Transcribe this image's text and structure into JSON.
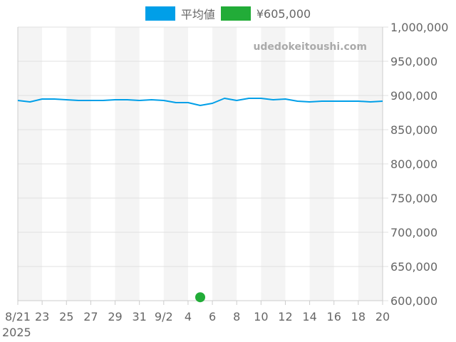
{
  "legend": {
    "items": [
      {
        "label": "平均値",
        "color": "#009fe8"
      },
      {
        "label": "¥605,000",
        "color": "#22ac38"
      }
    ]
  },
  "watermark": "udedokeitoushi.com",
  "chart_data": {
    "type": "line",
    "title": "",
    "xlabel": "",
    "ylabel": "",
    "year_label": "2025",
    "x_tick_labels": [
      "8/21",
      "23",
      "25",
      "27",
      "29",
      "31",
      "9/2",
      "4",
      "6",
      "8",
      "10",
      "12",
      "14",
      "16",
      "18",
      "20"
    ],
    "y_tick_labels": [
      "1,000,000",
      "950,000",
      "900,000",
      "850,000",
      "800,000",
      "750,000",
      "700,000",
      "650,000",
      "600,000"
    ],
    "ylim": [
      600000,
      1000000
    ],
    "x": [
      "8/21",
      "8/22",
      "8/23",
      "8/24",
      "8/25",
      "8/26",
      "8/27",
      "8/28",
      "8/29",
      "8/30",
      "8/31",
      "9/1",
      "9/2",
      "9/3",
      "9/4",
      "9/5",
      "9/6",
      "9/7",
      "9/8",
      "9/9",
      "9/10",
      "9/11",
      "9/12",
      "9/13",
      "9/14",
      "9/15",
      "9/16",
      "9/17",
      "9/18",
      "9/19",
      "9/20"
    ],
    "series": [
      {
        "name": "平均値",
        "color": "#009fe8",
        "values": [
          892700,
          890600,
          894800,
          894800,
          893800,
          892700,
          892700,
          892700,
          893800,
          893800,
          892700,
          893800,
          892700,
          889600,
          889600,
          885400,
          888500,
          895800,
          892700,
          895800,
          895800,
          893800,
          894800,
          891700,
          890600,
          891700,
          891700,
          891700,
          891700,
          890600,
          891700
        ]
      },
      {
        "name": "¥605,000",
        "color": "#22ac38",
        "type": "scatter",
        "points": [
          {
            "x": "9/5",
            "y": 605000
          }
        ]
      }
    ],
    "legend_position": "top",
    "grid": true,
    "y_axis_position": "right",
    "alternating_column_bands": true
  }
}
